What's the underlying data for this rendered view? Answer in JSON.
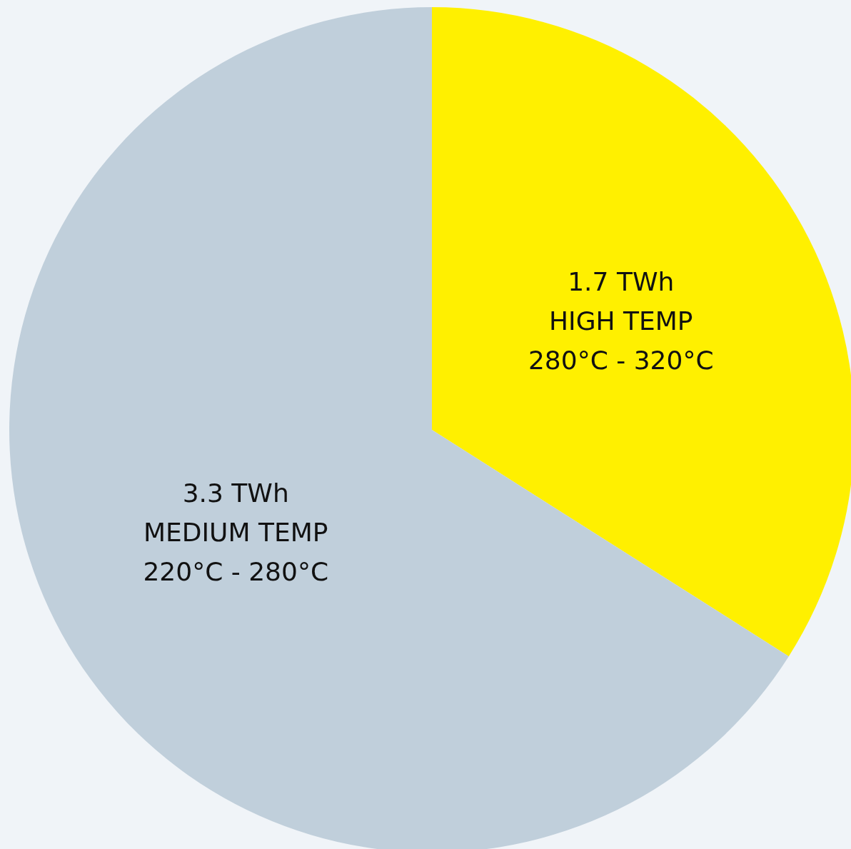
{
  "chart_data": {
    "type": "pie",
    "categories": [
      "HIGH TEMP",
      "MEDIUM TEMP"
    ],
    "values": [
      1.7,
      3.3
    ],
    "colors": [
      "#fff000",
      "#c0cfdb"
    ],
    "value_labels": [
      "1.7 TWh",
      "3.3 TWh"
    ],
    "annotations": [
      "280°C - 320°C",
      "220°C - 280°C"
    ]
  }
}
